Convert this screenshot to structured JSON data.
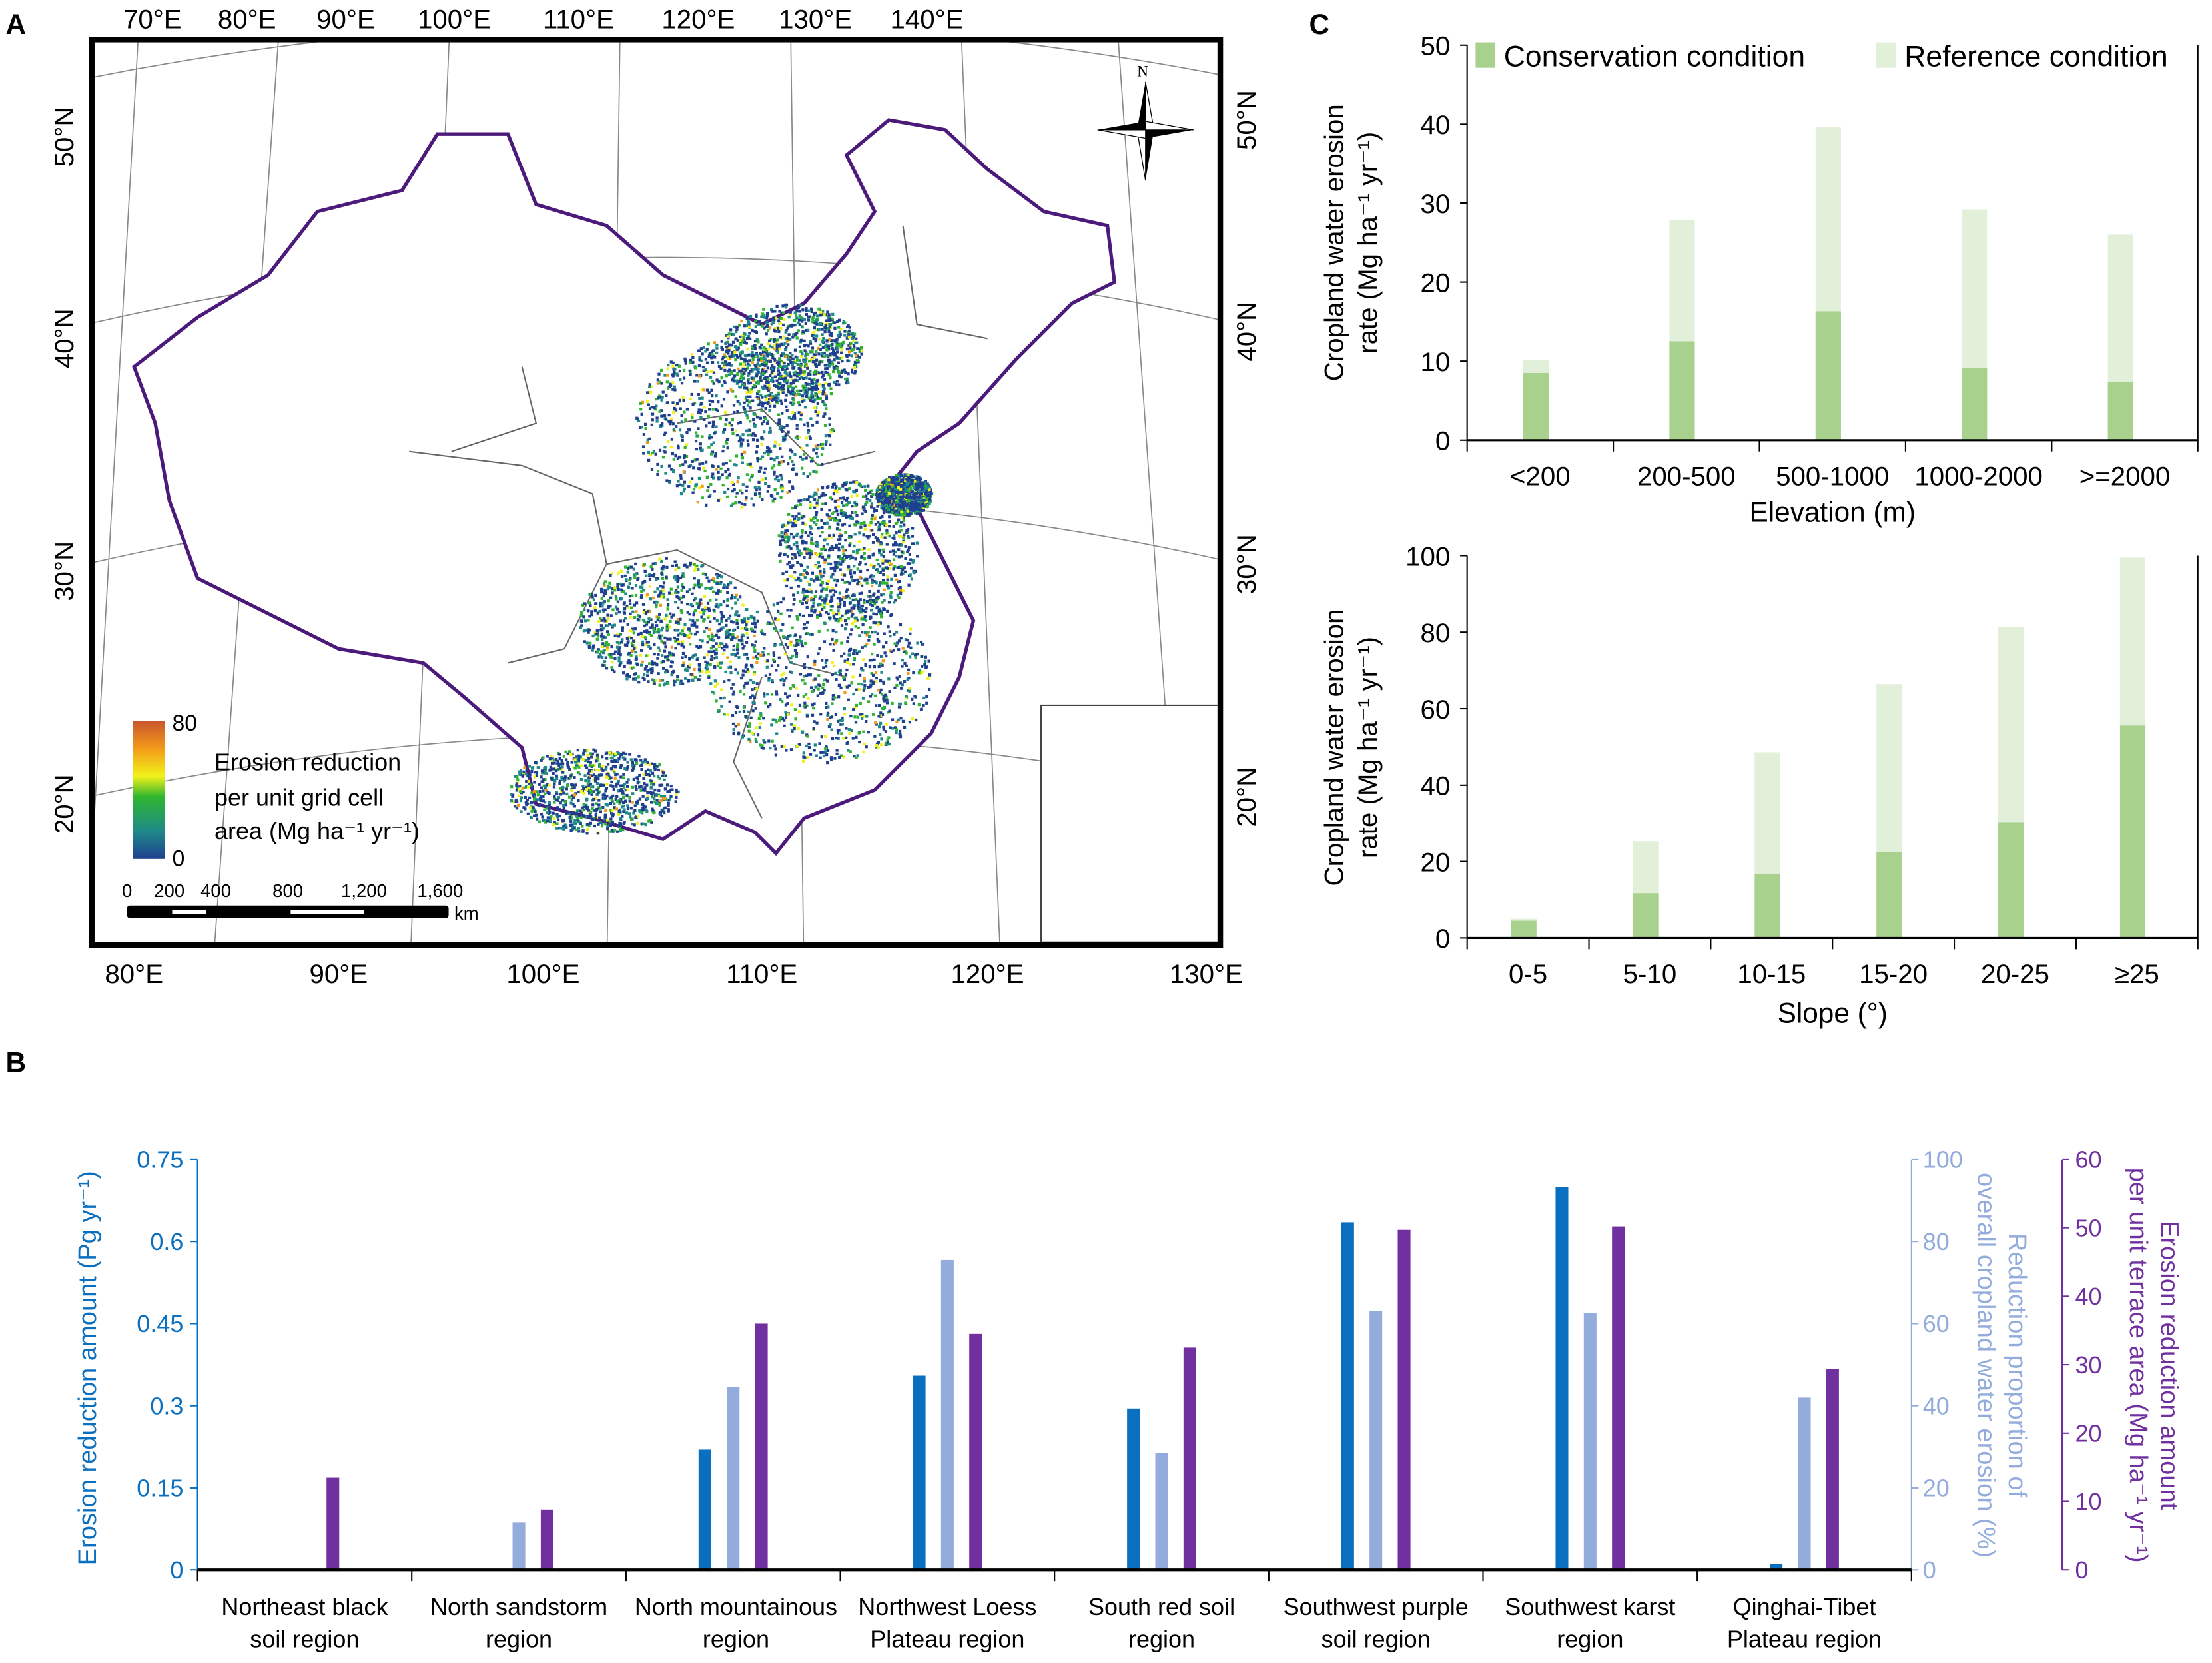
{
  "panel_labels": {
    "a": "A",
    "b": "B",
    "c": "C"
  },
  "map": {
    "top_lon_labels": [
      "70°E",
      "80°E",
      "90°E",
      "100°E",
      "110°E",
      "120°E",
      "130°E",
      "140°E"
    ],
    "bottom_lon_labels": [
      "80°E",
      "90°E",
      "100°E",
      "110°E",
      "120°E",
      "130°E"
    ],
    "left_lat_labels": [
      "50°N",
      "40°N",
      "30°N",
      "20°N"
    ],
    "right_lat_labels": [
      "50°N",
      "40°N",
      "30°N",
      "20°N"
    ],
    "north_label": "N",
    "legend": {
      "max": "80",
      "min": "0",
      "title_line1": "Erosion  reduction",
      "title_line2": "per  unit  grid  cell",
      "title_line3": "area (Mg ha⁻¹ yr⁻¹)",
      "colors": [
        "#1f3f8f",
        "#1e8a8a",
        "#2fb52f",
        "#f2f21a",
        "#f39a1a",
        "#c8562e"
      ]
    },
    "scale_bar": {
      "ticks": [
        "0",
        "200",
        "400",
        "800",
        "1,200",
        "1,600"
      ],
      "unit": "km"
    },
    "boundary_color": "#4b1a7a"
  },
  "chart_data": [
    {
      "id": "B",
      "type": "bar",
      "categories": [
        "Northeast black soil region",
        "North sandstorm region",
        "North mountainous region",
        "Northwest Loess Plateau region",
        "South red soil region",
        "Southwest purple soil region",
        "Southwest karst region",
        "Qinghai-Tibet Plateau region"
      ],
      "category_lines": [
        [
          "Northeast black",
          "soil region"
        ],
        [
          "North sandstorm",
          "region"
        ],
        [
          "North mountainous",
          "region"
        ],
        [
          "Northwest Loess",
          "Plateau region"
        ],
        [
          "South red soil",
          "region"
        ],
        [
          "Southwest purple",
          "soil region"
        ],
        [
          "Southwest karst",
          "region"
        ],
        [
          "Qinghai-Tibet",
          "Plateau region"
        ]
      ],
      "series": [
        {
          "name": "Erosion reduction amount",
          "axis": "left",
          "color": "#0b6fbf",
          "values": [
            0,
            0,
            0.22,
            0.355,
            0.295,
            0.635,
            0.7,
            0.01
          ]
        },
        {
          "name": "Reduction proportion",
          "axis": "right1",
          "color": "#93acdc",
          "values": [
            0,
            11.5,
            44.5,
            75.5,
            28.5,
            63,
            62.5,
            42
          ]
        },
        {
          "name": "Erosion reduction per unit terrace area",
          "axis": "right2",
          "color": "#7030a0",
          "values": [
            13.5,
            8.8,
            36,
            34.5,
            32.5,
            49.7,
            50.2,
            29.4
          ]
        }
      ],
      "ylabel_left": "Erosion reduction amount (Pg yr⁻¹)",
      "ylim_left": [
        0,
        0.75
      ],
      "yticks_left": [
        "0",
        "0.15",
        "0.3",
        "0.45",
        "0.6",
        "0.75"
      ],
      "ylabel_right1_line1": "Reduction proportion of",
      "ylabel_right1_line2": "overall cropland water erosion (%)",
      "ylim_right1": [
        0,
        100
      ],
      "yticks_right1": [
        "0",
        "20",
        "40",
        "60",
        "80",
        "100"
      ],
      "ylabel_right2_line1": "Erosion reduction amount",
      "ylabel_right2_line2": "per unit terrace area (Mg ha⁻¹ yr⁻¹)",
      "ylim_right2": [
        0,
        60
      ],
      "yticks_right2": [
        "0",
        "10",
        "20",
        "30",
        "40",
        "50",
        "60"
      ]
    },
    {
      "id": "C-elevation",
      "type": "bar",
      "categories": [
        "<200",
        "200-500",
        "500-1000",
        "1000-2000",
        ">=2000"
      ],
      "series": [
        {
          "name": "Reference condition",
          "color": "#e2efd9",
          "values": [
            10.1,
            27.9,
            39.6,
            29.2,
            26.0
          ]
        },
        {
          "name": "Conservation condition",
          "color": "#a9d18e",
          "values": [
            8.5,
            12.5,
            16.3,
            9.1,
            7.4
          ]
        }
      ],
      "legend": [
        "Conservation condition",
        "Reference condition"
      ],
      "legend_position": "top",
      "xlabel": "Elevation (m)",
      "ylabel_line1": "Cropland water erosion",
      "ylabel_line2": "rate (Mg ha⁻¹ yr⁻¹)",
      "ylim": [
        0,
        50
      ],
      "yticks": [
        "0",
        "10",
        "20",
        "30",
        "40",
        "50"
      ]
    },
    {
      "id": "C-slope",
      "type": "bar",
      "categories": [
        "0-5",
        "5-10",
        "10-15",
        "15-20",
        "20-25",
        "≥25"
      ],
      "series": [
        {
          "name": "Reference condition",
          "color": "#e2efd9",
          "values": [
            5.0,
            25.3,
            48.6,
            66.4,
            81.3,
            99.5
          ]
        },
        {
          "name": "Conservation condition",
          "color": "#a9d18e",
          "values": [
            4.5,
            11.7,
            16.8,
            22.5,
            30.3,
            55.6
          ]
        }
      ],
      "xlabel": "Slope (°)",
      "ylabel_line1": "Cropland water erosion",
      "ylabel_line2": "rate (Mg ha⁻¹ yr⁻¹)",
      "ylim": [
        0,
        100
      ],
      "yticks": [
        "0",
        "20",
        "40",
        "60",
        "80",
        "100"
      ]
    }
  ]
}
